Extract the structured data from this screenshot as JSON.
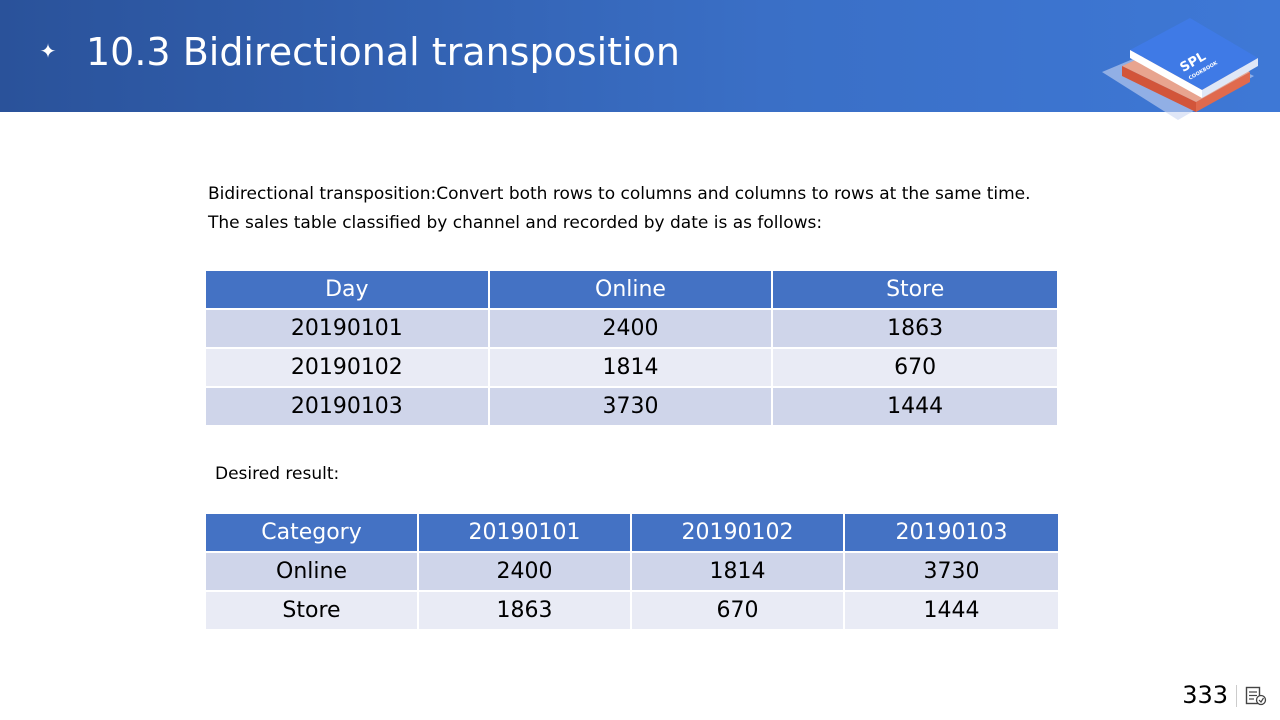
{
  "slide": {
    "title": "10.3 Bidirectional transposition",
    "bullet_icon": "four-point-star-icon",
    "logo_text_main": "SPL",
    "logo_text_sub": "COOKBOOK",
    "page_number": "333"
  },
  "intro": {
    "line1": "Bidirectional transposition:Convert both rows to columns and columns to rows at the same time.",
    "line2": "The sales table classified by channel and recorded by date is as follows:"
  },
  "sales_table": {
    "headers": [
      "Day",
      "Online",
      "Store"
    ],
    "rows": [
      [
        "20190101",
        "2400",
        "1863"
      ],
      [
        "20190102",
        "1814",
        "670"
      ],
      [
        "20190103",
        "3730",
        "1444"
      ]
    ]
  },
  "desired_label": "Desired result:",
  "result_table": {
    "headers": [
      "Category",
      "20190101",
      "20190102",
      "20190103"
    ],
    "rows": [
      [
        "Online",
        "2400",
        "1814",
        "3730"
      ],
      [
        "Store",
        "1863",
        "670",
        "1444"
      ]
    ]
  },
  "colors": {
    "header_band": "#2a529a",
    "table_header": "#4472c4",
    "row_dark": "#cfd5ea",
    "row_light": "#e9ebf5"
  }
}
